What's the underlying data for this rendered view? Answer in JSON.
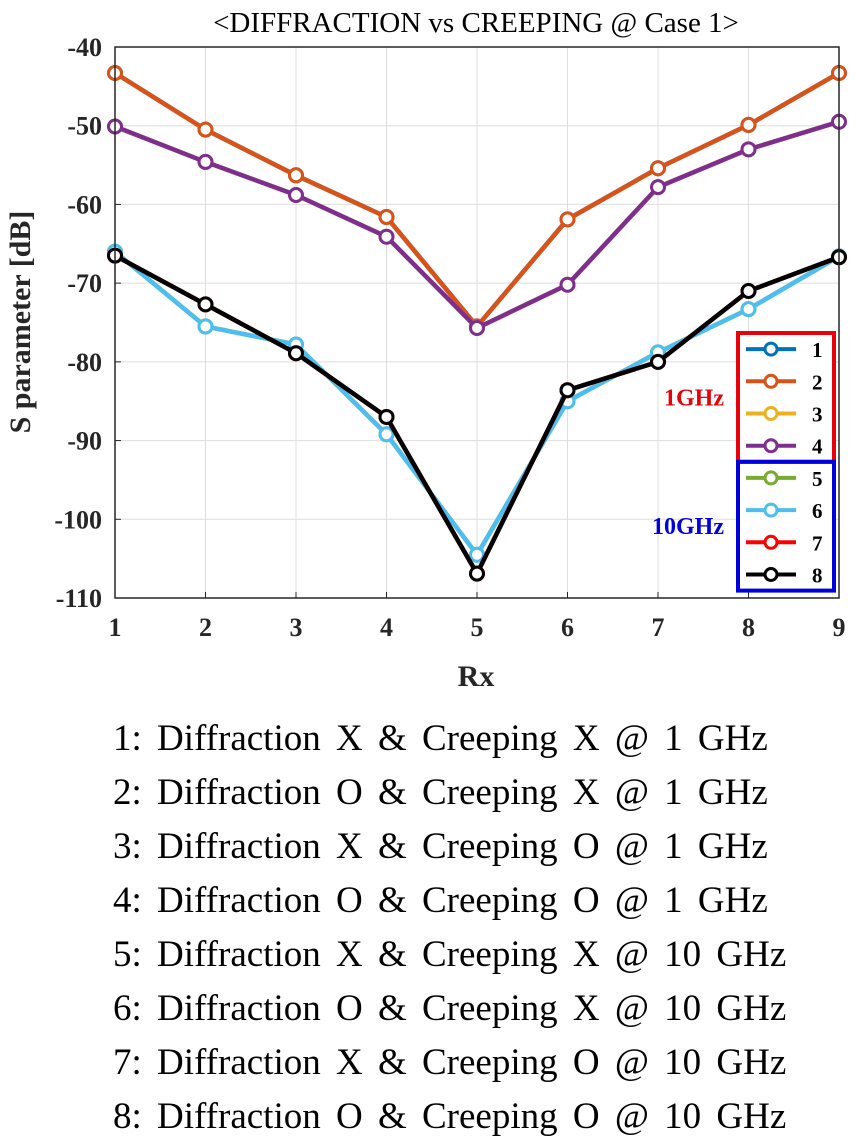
{
  "chart_data": {
    "type": "line",
    "title": "<DIFFRACTION vs CREEPING @ Case 1>",
    "xlabel": "Rx",
    "ylabel": "S parameter [dB]",
    "x": [
      1,
      2,
      3,
      4,
      5,
      6,
      7,
      8,
      9
    ],
    "xlim": [
      1,
      9
    ],
    "ylim": [
      -110,
      -40
    ],
    "xticks": [
      "1",
      "2",
      "3",
      "4",
      "5",
      "6",
      "7",
      "8",
      "9"
    ],
    "yticks": [
      "-40",
      "-50",
      "-60",
      "-70",
      "-80",
      "-90",
      "-100",
      "-110"
    ],
    "grid": true,
    "legend_position": "right",
    "series": [
      {
        "name": "1",
        "color": "#0072BD",
        "values": [
          -43.3,
          -50.5,
          -56.3,
          -61.6,
          -75.5,
          -61.9,
          -55.4,
          -49.9,
          -43.3
        ]
      },
      {
        "name": "2",
        "color": "#D95319",
        "values": [
          -43.3,
          -50.5,
          -56.3,
          -61.6,
          -75.5,
          -61.9,
          -55.4,
          -49.9,
          -43.3
        ]
      },
      {
        "name": "3",
        "color": "#EDB120",
        "values": [
          -50.1,
          -54.6,
          -58.8,
          -64.1,
          -75.7,
          -70.2,
          -57.8,
          -53.0,
          -49.5
        ]
      },
      {
        "name": "4",
        "color": "#7E2F8E",
        "values": [
          -50.1,
          -54.6,
          -58.8,
          -64.1,
          -75.7,
          -70.2,
          -57.8,
          -53.0,
          -49.5
        ]
      },
      {
        "name": "5",
        "color": "#77AC30",
        "values": [
          -66.0,
          -75.5,
          -77.8,
          -89.2,
          -104.5,
          -85.0,
          -78.8,
          -73.3,
          -66.6
        ]
      },
      {
        "name": "6",
        "color": "#4DBEEE",
        "values": [
          -66.0,
          -75.5,
          -77.8,
          -89.2,
          -104.5,
          -85.0,
          -78.8,
          -73.3,
          -66.6
        ]
      },
      {
        "name": "7",
        "color": "#FF0000",
        "values": [
          -66.5,
          -72.7,
          -78.9,
          -87.0,
          -106.9,
          -83.6,
          -80.0,
          -71.0,
          -66.7
        ]
      },
      {
        "name": "8",
        "color": "#000000",
        "values": [
          -66.5,
          -72.7,
          -78.9,
          -87.0,
          -106.9,
          -83.6,
          -80.0,
          -71.0,
          -66.7
        ]
      }
    ],
    "legend_groups": [
      {
        "label": "1GHz",
        "color": "#E8000B",
        "members": [
          "1",
          "2",
          "3",
          "4"
        ]
      },
      {
        "label": "10GHz",
        "color": "#0000DD",
        "members": [
          "5",
          "6",
          "7",
          "8"
        ]
      }
    ]
  },
  "descriptions": [
    "1: Diffraction X & Creeping X @ 1 GHz",
    "2: Diffraction O & Creeping X @ 1 GHz",
    "3: Diffraction X & Creeping O @ 1 GHz",
    "4: Diffraction O & Creeping O @ 1 GHz",
    "5: Diffraction X & Creeping X @ 10 GHz",
    "6: Diffraction O & Creeping X @ 10 GHz",
    "7: Diffraction X & Creeping O @ 10 GHz",
    "8: Diffraction O & Creeping O @ 10 GHz"
  ]
}
